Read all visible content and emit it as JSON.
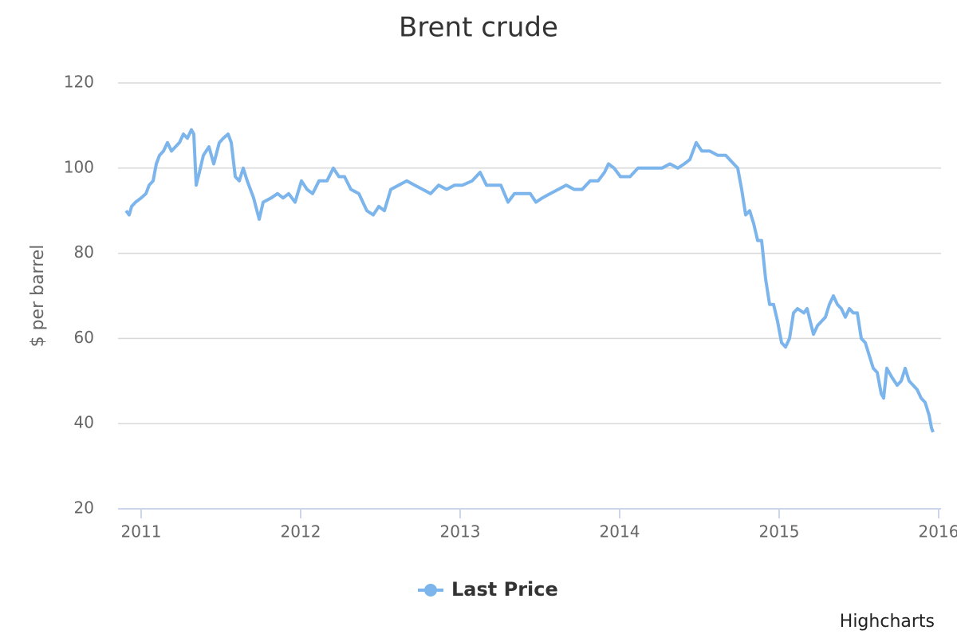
{
  "chart_data": {
    "type": "line",
    "title": "Brent crude",
    "y_label": "$ per barrel",
    "credits": "Highcharts",
    "legend": "bottom",
    "grid": true,
    "xlim": [
      2010.855,
      2016.015
    ],
    "xticks": [
      2011,
      2012,
      2013,
      2014,
      2015,
      2016
    ],
    "ylim": [
      20,
      120
    ],
    "yticks": [
      20,
      40,
      60,
      80,
      100,
      120
    ],
    "x": [
      2010.905,
      2010.925,
      2010.94,
      2010.965,
      2011,
      2011.03,
      2011.05,
      2011.075,
      2011.095,
      2011.115,
      2011.14,
      2011.165,
      2011.19,
      2011.215,
      2011.24,
      2011.265,
      2011.29,
      2011.315,
      2011.33,
      2011.345,
      2011.365,
      2011.39,
      2011.425,
      2011.455,
      2011.49,
      2011.515,
      2011.545,
      2011.565,
      2011.59,
      2011.615,
      2011.64,
      2011.665,
      2011.705,
      2011.74,
      2011.765,
      2011.815,
      2011.855,
      2011.89,
      2011.925,
      2011.965,
      2012.005,
      2012.04,
      2012.075,
      2012.115,
      2012.165,
      2012.205,
      2012.24,
      2012.275,
      2012.315,
      2012.365,
      2012.415,
      2012.455,
      2012.49,
      2012.525,
      2012.565,
      2012.615,
      2012.665,
      2012.715,
      2012.765,
      2012.815,
      2012.865,
      2012.915,
      2012.965,
      2013.015,
      2013.075,
      2013.125,
      2013.165,
      2013.215,
      2013.255,
      2013.3,
      2013.34,
      2013.39,
      2013.44,
      2013.475,
      2013.515,
      2013.565,
      2013.615,
      2013.665,
      2013.715,
      2013.765,
      2013.815,
      2013.865,
      2013.905,
      2013.93,
      2013.965,
      2014.005,
      2014.065,
      2014.115,
      2014.165,
      2014.215,
      2014.265,
      2014.315,
      2014.365,
      2014.405,
      2014.44,
      2014.48,
      2014.515,
      2014.565,
      2014.615,
      2014.665,
      2014.715,
      2014.74,
      2014.765,
      2014.79,
      2014.815,
      2014.84,
      2014.865,
      2014.89,
      2014.915,
      2014.94,
      2014.965,
      2014.99,
      2015.015,
      2015.04,
      2015.065,
      2015.09,
      2015.115,
      2015.155,
      2015.175,
      2015.215,
      2015.24,
      2015.265,
      2015.29,
      2015.315,
      2015.34,
      2015.365,
      2015.39,
      2015.415,
      2015.44,
      2015.465,
      2015.49,
      2015.515,
      2015.54,
      2015.565,
      2015.59,
      2015.615,
      2015.64,
      2015.655,
      2015.675,
      2015.705,
      2015.74,
      2015.765,
      2015.79,
      2015.815,
      2015.84,
      2015.865,
      2015.89,
      2015.915,
      2015.94,
      2015.955,
      2015.965
    ],
    "series": [
      {
        "name": "Last Price",
        "color": "#7cb5ec",
        "values": [
          90,
          89,
          91,
          92,
          93,
          94,
          96,
          97,
          101,
          103,
          104,
          106,
          104,
          105,
          106,
          108,
          107,
          109,
          108,
          96,
          99,
          103,
          105,
          101,
          106,
          107,
          108,
          106,
          98,
          97,
          100,
          97,
          93,
          88,
          92,
          93,
          94,
          93,
          94,
          92,
          97,
          95,
          94,
          97,
          97,
          100,
          98,
          98,
          95,
          94,
          90,
          89,
          91,
          90,
          95,
          96,
          97,
          96,
          95,
          94,
          96,
          95,
          96,
          96,
          97,
          99,
          96,
          96,
          96,
          92,
          94,
          94,
          94,
          92,
          93,
          94,
          95,
          96,
          95,
          95,
          97,
          97,
          99,
          101,
          100,
          98,
          98,
          100,
          100,
          100,
          100,
          101,
          100,
          101,
          102,
          106,
          104,
          104,
          103,
          103,
          101,
          100,
          95,
          89,
          90,
          87,
          83,
          83,
          74,
          68,
          68,
          64,
          59,
          58,
          60,
          66,
          67,
          66,
          67,
          61,
          63,
          64,
          65,
          68,
          70,
          68,
          67,
          65,
          67,
          66,
          66,
          60,
          59,
          56,
          53,
          52,
          47,
          46,
          53,
          51,
          49,
          50,
          53,
          50,
          49,
          48,
          46,
          45,
          42,
          39,
          38
        ]
      }
    ]
  }
}
